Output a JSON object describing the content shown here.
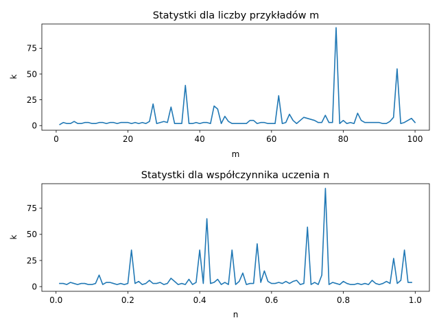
{
  "chart_data": [
    {
      "type": "line",
      "title": "Statystki dla liczby przykładów m",
      "xlabel": "m",
      "ylabel": "k",
      "xlim": [
        -4,
        104
      ],
      "ylim": [
        -4.5,
        98.5
      ],
      "xticks": [
        0,
        20,
        40,
        60,
        80,
        100
      ],
      "yticks": [
        0,
        25,
        50,
        75
      ],
      "grid": false,
      "color": "#1f77b4",
      "series": [
        {
          "x": [
            1,
            2,
            3,
            4,
            5,
            6,
            7,
            8,
            9,
            10,
            11,
            12,
            13,
            14,
            15,
            16,
            17,
            18,
            19,
            20,
            21,
            22,
            23,
            24,
            25,
            26,
            27,
            28,
            29,
            30,
            31,
            32,
            33,
            34,
            35,
            36,
            37,
            38,
            39,
            40,
            41,
            42,
            43,
            44,
            45,
            46,
            47,
            48,
            49,
            50,
            51,
            52,
            53,
            54,
            55,
            56,
            57,
            58,
            59,
            60,
            61,
            62,
            63,
            64,
            65,
            66,
            67,
            68,
            69,
            70,
            71,
            72,
            73,
            74,
            75,
            76,
            77,
            78,
            79,
            80,
            81,
            82,
            83,
            84,
            85,
            86,
            87,
            88,
            89,
            90,
            91,
            92,
            93,
            94,
            95,
            96,
            97,
            98,
            99,
            100
          ],
          "values": [
            1,
            3,
            2,
            2,
            4,
            2,
            2,
            3,
            3,
            2,
            2,
            3,
            3,
            2,
            3,
            3,
            2,
            3,
            3,
            3,
            2,
            3,
            2,
            3,
            2,
            4,
            21,
            2,
            3,
            4,
            3,
            18,
            2,
            2,
            2,
            39,
            2,
            2,
            3,
            2,
            3,
            3,
            2,
            19,
            16,
            2,
            9,
            4,
            2,
            2,
            2,
            2,
            2,
            5,
            5,
            2,
            3,
            3,
            2,
            2,
            2,
            29,
            2,
            3,
            11,
            5,
            2,
            5,
            8,
            7,
            6,
            5,
            3,
            3,
            10,
            3,
            3,
            95,
            2,
            5,
            2,
            3,
            2,
            12,
            5,
            3,
            3,
            3,
            3,
            3,
            2,
            2,
            4,
            8,
            55,
            2,
            3,
            5,
            7,
            3
          ]
        }
      ]
    },
    {
      "type": "line",
      "title": "Statystki dla współczynnika uczenia n",
      "xlabel": "n",
      "ylabel": "k",
      "xlim": [
        -0.0395,
        1.0395
      ],
      "ylim": [
        -4.5,
        98.5
      ],
      "xticks": [
        0.0,
        0.2,
        0.4,
        0.6,
        0.8,
        1.0
      ],
      "yticks": [
        0,
        25,
        50,
        75
      ],
      "grid": false,
      "color": "#1f77b4",
      "series": [
        {
          "x": [
            0.01,
            0.02,
            0.03,
            0.04,
            0.05,
            0.06,
            0.07,
            0.08,
            0.09,
            0.1,
            0.11,
            0.12,
            0.13,
            0.14,
            0.15,
            0.16,
            0.17,
            0.18,
            0.19,
            0.2,
            0.21,
            0.22,
            0.23,
            0.24,
            0.25,
            0.26,
            0.27,
            0.28,
            0.29,
            0.3,
            0.31,
            0.32,
            0.33,
            0.34,
            0.35,
            0.36,
            0.37,
            0.38,
            0.39,
            0.4,
            0.41,
            0.42,
            0.43,
            0.44,
            0.45,
            0.46,
            0.47,
            0.48,
            0.49,
            0.5,
            0.51,
            0.52,
            0.53,
            0.54,
            0.55,
            0.56,
            0.57,
            0.58,
            0.59,
            0.6,
            0.61,
            0.62,
            0.63,
            0.64,
            0.65,
            0.66,
            0.67,
            0.68,
            0.69,
            0.7,
            0.71,
            0.72,
            0.73,
            0.74,
            0.75,
            0.76,
            0.77,
            0.78,
            0.79,
            0.8,
            0.81,
            0.82,
            0.83,
            0.84,
            0.85,
            0.86,
            0.87,
            0.88,
            0.89,
            0.9,
            0.91,
            0.92,
            0.93,
            0.94,
            0.95,
            0.96,
            0.97,
            0.98,
            0.99
          ],
          "values": [
            3,
            3,
            2,
            4,
            3,
            2,
            3,
            3,
            2,
            2,
            3,
            11,
            2,
            4,
            4,
            3,
            2,
            3,
            2,
            3,
            35,
            3,
            5,
            2,
            3,
            6,
            3,
            3,
            4,
            2,
            3,
            8,
            5,
            2,
            3,
            2,
            7,
            2,
            4,
            35,
            3,
            65,
            3,
            4,
            7,
            2,
            4,
            2,
            35,
            2,
            5,
            13,
            2,
            3,
            3,
            41,
            4,
            15,
            5,
            3,
            3,
            4,
            3,
            5,
            3,
            5,
            6,
            2,
            3,
            57,
            2,
            4,
            2,
            11,
            94,
            2,
            4,
            3,
            2,
            5,
            3,
            2,
            2,
            3,
            2,
            3,
            2,
            6,
            3,
            2,
            3,
            5,
            3,
            27,
            3,
            6,
            35,
            4,
            4
          ]
        }
      ]
    }
  ]
}
